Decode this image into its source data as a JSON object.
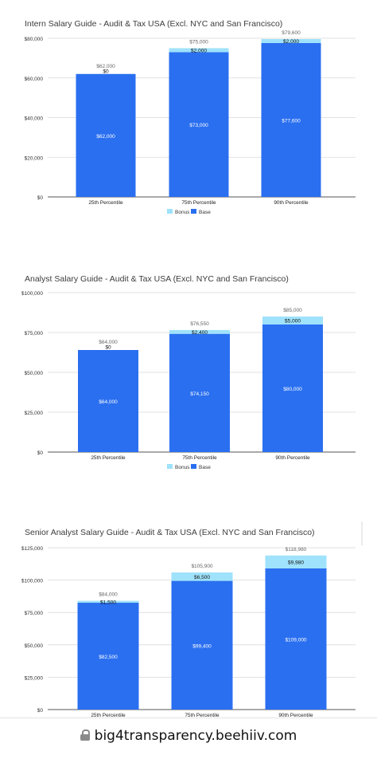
{
  "chart_data": [
    {
      "type": "bar",
      "stacked": true,
      "title": "Intern Salary Guide - Audit & Tax USA (Excl. NYC and San Francisco)",
      "categories": [
        "25th Percentile",
        "75th Percentile",
        "90th Percentile"
      ],
      "series": [
        {
          "name": "Base",
          "values": [
            62000,
            73000,
            77600
          ],
          "labels": [
            "$62,000",
            "$73,000",
            "$77,600"
          ],
          "color": "#2a6ff0"
        },
        {
          "name": "Bonus",
          "values": [
            0,
            2000,
            2000
          ],
          "labels": [
            "$0",
            "$2,000",
            "$2,000"
          ],
          "color": "#9fe2fb"
        }
      ],
      "totals": [
        "$62,000",
        "$75,000",
        "$79,600"
      ],
      "ylim": [
        0,
        80000
      ],
      "yticks": [
        0,
        20000,
        40000,
        60000,
        80000
      ],
      "ytick_labels": [
        "$0",
        "$20,000",
        "$40,000",
        "$60,000",
        "$80,000"
      ],
      "grid": true,
      "legend_position": "bottom"
    },
    {
      "type": "bar",
      "stacked": true,
      "title": "Analyst Salary Guide - Audit & Tax USA (Excl. NYC and San Francisco)",
      "categories": [
        "25th Percentile",
        "75th Percentile",
        "90th Percentile"
      ],
      "series": [
        {
          "name": "Base",
          "values": [
            64000,
            74150,
            80000
          ],
          "labels": [
            "$64,000",
            "$74,150",
            "$80,000"
          ],
          "color": "#2a6ff0"
        },
        {
          "name": "Bonus",
          "values": [
            0,
            2400,
            5000
          ],
          "labels": [
            "$0",
            "$2,400",
            "$5,000"
          ],
          "color": "#9fe2fb"
        }
      ],
      "totals": [
        "$64,000",
        "$76,550",
        "$85,000"
      ],
      "ylim": [
        0,
        100000
      ],
      "yticks": [
        0,
        25000,
        50000,
        75000,
        100000
      ],
      "ytick_labels": [
        "$0",
        "$25,000",
        "$50,000",
        "$75,000",
        "$100,000"
      ],
      "grid": true,
      "legend_position": "bottom"
    },
    {
      "type": "bar",
      "stacked": true,
      "title": "Senior Analyst Salary Guide - Audit & Tax USA (Excl. NYC and San Francisco)",
      "categories": [
        "25th Percentile",
        "75th Percentile",
        "90th Percentile"
      ],
      "series": [
        {
          "name": "Base",
          "values": [
            82500,
            99400,
            109000
          ],
          "labels": [
            "$82,500",
            "$99,400",
            "$109,000"
          ],
          "color": "#2a6ff0"
        },
        {
          "name": "Bonus",
          "values": [
            1500,
            6500,
            9980
          ],
          "labels": [
            "$1,500",
            "$6,500",
            "$9,980"
          ],
          "color": "#9fe2fb"
        }
      ],
      "totals": [
        "$84,000",
        "$105,900",
        "$118,980"
      ],
      "ylim": [
        0,
        125000
      ],
      "yticks": [
        0,
        25000,
        50000,
        75000,
        100000,
        125000
      ],
      "ytick_labels": [
        "$0",
        "$25,000",
        "$50,000",
        "$75,000",
        "$100,000",
        "$125,000"
      ],
      "grid": true,
      "legend_position": "none"
    }
  ],
  "footer": {
    "url": "big4transparency.beehiiv.com",
    "icon": "lock-icon"
  }
}
